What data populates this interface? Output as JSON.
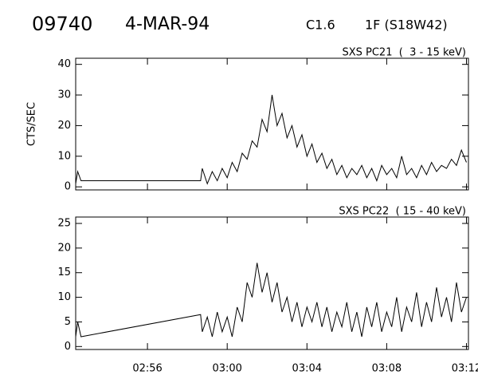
{
  "header": {
    "id": "09740",
    "date": "4-MAR-94",
    "class": "C1.6",
    "flare": "1F (S18W42)"
  },
  "chart_data": [
    {
      "type": "line",
      "title": "SXS PC21  (  3 - 15 keV)",
      "y_label": "CTS/SEC",
      "x": [
        "02:52:24",
        "02:52:30",
        "02:52:40",
        "02:58:40",
        "02:58:45",
        "02:59:00",
        "02:59:15",
        "02:59:30",
        "02:59:45",
        "03:00:00",
        "03:00:15",
        "03:00:30",
        "03:00:45",
        "03:01:00",
        "03:01:15",
        "03:01:30",
        "03:01:45",
        "03:02:00",
        "03:02:15",
        "03:02:30",
        "03:02:45",
        "03:03:00",
        "03:03:15",
        "03:03:30",
        "03:03:45",
        "03:04:00",
        "03:04:15",
        "03:04:30",
        "03:04:45",
        "03:05:00",
        "03:05:15",
        "03:05:30",
        "03:05:45",
        "03:06:00",
        "03:06:15",
        "03:06:30",
        "03:06:45",
        "03:07:00",
        "03:07:15",
        "03:07:30",
        "03:07:45",
        "03:08:00",
        "03:08:15",
        "03:08:30",
        "03:08:45",
        "03:09:00",
        "03:09:15",
        "03:09:30",
        "03:09:45",
        "03:10:00",
        "03:10:15",
        "03:10:30",
        "03:10:45",
        "03:11:00",
        "03:11:15",
        "03:11:30",
        "03:11:45",
        "03:12:00"
      ],
      "series": [
        {
          "color": "#000000",
          "values": [
            1,
            5,
            2,
            2,
            6,
            1,
            5,
            2,
            6,
            3,
            8,
            5,
            11,
            9,
            15,
            13,
            22,
            18,
            30,
            20,
            24,
            16,
            20,
            13,
            17,
            10,
            14,
            8,
            11,
            6,
            9,
            4,
            7,
            3,
            6,
            4,
            7,
            3,
            6,
            2,
            7,
            4,
            6,
            3,
            10,
            4,
            6,
            3,
            7,
            4,
            8,
            5,
            7,
            6,
            9,
            7,
            12,
            8
          ]
        }
      ],
      "xlim": [
        "02:52:24",
        "03:12:06"
      ],
      "ylim": [
        -1,
        42
      ],
      "yticks": [
        0,
        10,
        20,
        30,
        40
      ]
    },
    {
      "type": "line",
      "title": "SXS PC22  ( 15 - 40 keV)",
      "x": [
        "02:52:24",
        "02:52:30",
        "02:52:40",
        "02:58:40",
        "02:58:45",
        "02:59:00",
        "02:59:15",
        "02:59:30",
        "02:59:45",
        "03:00:00",
        "03:00:15",
        "03:00:30",
        "03:00:45",
        "03:01:00",
        "03:01:15",
        "03:01:30",
        "03:01:45",
        "03:02:00",
        "03:02:15",
        "03:02:30",
        "03:02:45",
        "03:03:00",
        "03:03:15",
        "03:03:30",
        "03:03:45",
        "03:04:00",
        "03:04:15",
        "03:04:30",
        "03:04:45",
        "03:05:00",
        "03:05:15",
        "03:05:30",
        "03:05:45",
        "03:06:00",
        "03:06:15",
        "03:06:30",
        "03:06:45",
        "03:07:00",
        "03:07:15",
        "03:07:30",
        "03:07:45",
        "03:08:00",
        "03:08:15",
        "03:08:30",
        "03:08:45",
        "03:09:00",
        "03:09:15",
        "03:09:30",
        "03:09:45",
        "03:10:00",
        "03:10:15",
        "03:10:30",
        "03:10:45",
        "03:11:00",
        "03:11:15",
        "03:11:30",
        "03:11:45",
        "03:12:00"
      ],
      "series": [
        {
          "color": "#000000",
          "values": [
            2,
            5,
            2,
            6.5,
            3,
            6,
            2,
            7,
            3,
            6,
            2,
            8,
            5,
            13,
            10,
            17,
            11,
            15,
            9,
            13,
            7,
            10,
            5,
            9,
            4,
            8,
            5,
            9,
            4,
            8,
            3,
            7,
            4,
            9,
            3,
            7,
            2,
            8,
            4,
            9,
            3,
            7,
            4,
            10,
            3,
            8,
            5,
            11,
            4,
            9,
            5,
            12,
            6,
            10,
            5,
            13,
            7,
            10
          ]
        }
      ],
      "xlim": [
        "02:52:24",
        "03:12:06"
      ],
      "ylim": [
        -0.6,
        26.3
      ],
      "yticks": [
        0,
        5,
        10,
        15,
        20,
        25
      ],
      "xticks": [
        "02:56",
        "03:00",
        "03:04",
        "03:08",
        "03:12"
      ]
    }
  ]
}
